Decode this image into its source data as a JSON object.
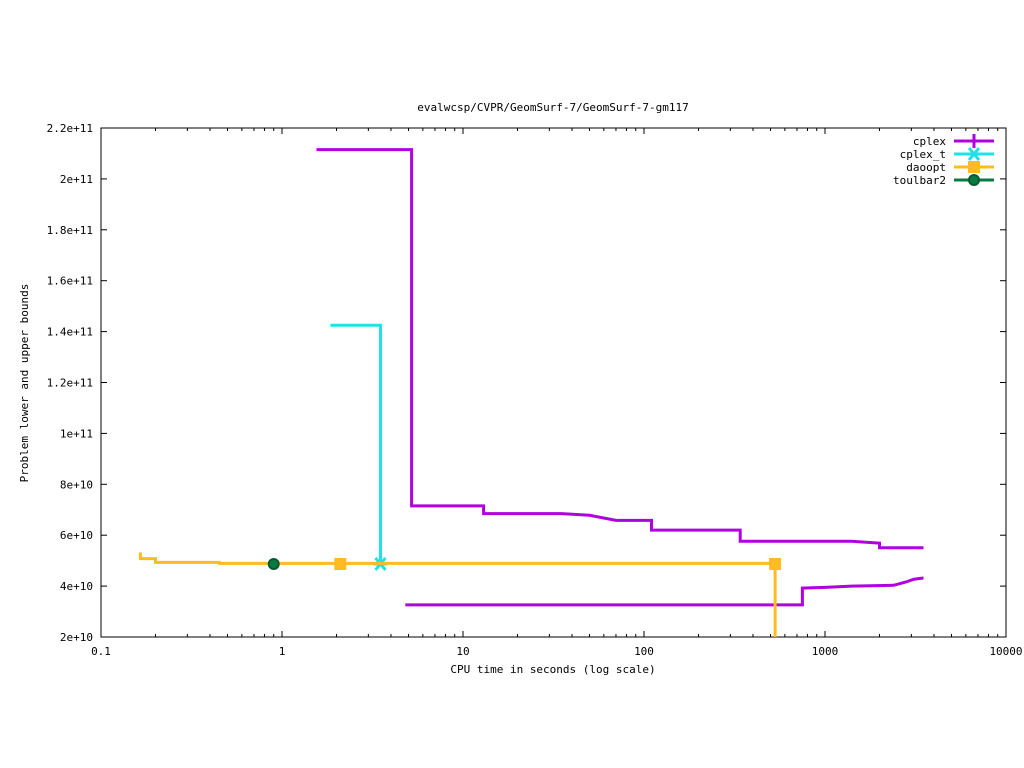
{
  "chart_data": {
    "type": "line",
    "title": "evalwcsp/CVPR/GeomSurf-7/GeomSurf-7-gm117",
    "xlabel": "CPU time in seconds (log scale)",
    "ylabel": "Problem lower and upper bounds",
    "xscale": "log",
    "xlim": [
      0.1,
      10000
    ],
    "ylim": [
      20000000000,
      220000000000
    ],
    "grid": false,
    "legend_position": "top-right",
    "x_ticks": [
      {
        "value": 0.1,
        "label": "0.1"
      },
      {
        "value": 1,
        "label": "1"
      },
      {
        "value": 10,
        "label": "10"
      },
      {
        "value": 100,
        "label": "100"
      },
      {
        "value": 1000,
        "label": "1000"
      },
      {
        "value": 10000,
        "label": "10000"
      }
    ],
    "y_ticks": [
      {
        "value": 20000000000,
        "label": "2e+10"
      },
      {
        "value": 40000000000,
        "label": "4e+10"
      },
      {
        "value": 60000000000,
        "label": "6e+10"
      },
      {
        "value": 80000000000,
        "label": "8e+10"
      },
      {
        "value": 100000000000,
        "label": "1e+11"
      },
      {
        "value": 120000000000,
        "label": "1.2e+11"
      },
      {
        "value": 140000000000,
        "label": "1.4e+11"
      },
      {
        "value": 160000000000,
        "label": "1.6e+11"
      },
      {
        "value": 180000000000,
        "label": "1.8e+11"
      },
      {
        "value": 200000000000,
        "label": "2e+11"
      },
      {
        "value": 220000000000,
        "label": "2.2e+11"
      }
    ],
    "series": [
      {
        "name": "cplex",
        "color": "#b000e0",
        "marker": "plus",
        "step_lines": [
          [
            [
              1.55,
              211500000000
            ],
            [
              5.2,
              211500000000
            ],
            [
              5.2,
              71500000000
            ],
            [
              13,
              71500000000
            ],
            [
              13,
              68500000000
            ],
            [
              35,
              68500000000
            ],
            [
              50,
              67800000000
            ],
            [
              70,
              65800000000
            ],
            [
              110,
              65800000000
            ],
            [
              110,
              62000000000
            ],
            [
              340,
              62000000000
            ],
            [
              340,
              57600000000
            ],
            [
              1400,
              57600000000
            ],
            [
              2000,
              56900000000
            ],
            [
              2000,
              55100000000
            ],
            [
              3500,
              55100000000
            ]
          ],
          [
            [
              4.8,
              32600000000
            ],
            [
              750,
              32600000000
            ],
            [
              750,
              39200000000
            ],
            [
              1000,
              39500000000
            ],
            [
              1400,
              40000000000
            ],
            [
              2400,
              40300000000
            ],
            [
              2800,
              41600000000
            ],
            [
              3100,
              42700000000
            ],
            [
              3500,
              43200000000
            ]
          ]
        ],
        "markers": []
      },
      {
        "name": "cplex_t",
        "color": "#20e0e8",
        "marker": "star",
        "step_lines": [
          [
            [
              1.85,
              142500000000
            ],
            [
              3.5,
              142500000000
            ],
            [
              3.5,
              48700000000
            ]
          ]
        ],
        "markers": [
          [
            3.5,
            48700000000
          ]
        ]
      },
      {
        "name": "daoopt",
        "color": "#ffbb22",
        "marker": "square",
        "step_lines": [
          [
            [
              0.165,
              53200000000
            ],
            [
              0.165,
              50800000000
            ],
            [
              0.2,
              50800000000
            ],
            [
              0.2,
              49300000000
            ],
            [
              0.45,
              49300000000
            ],
            [
              0.45,
              48900000000
            ],
            [
              530,
              48900000000
            ],
            [
              530,
              20000000000
            ]
          ]
        ],
        "markers": [
          [
            2.1,
            48700000000
          ],
          [
            530,
            48700000000
          ]
        ]
      },
      {
        "name": "toulbar2",
        "color": "#0a7a40",
        "marker": "circle",
        "step_lines": [],
        "markers": [
          [
            0.9,
            48700000000
          ]
        ]
      }
    ]
  }
}
